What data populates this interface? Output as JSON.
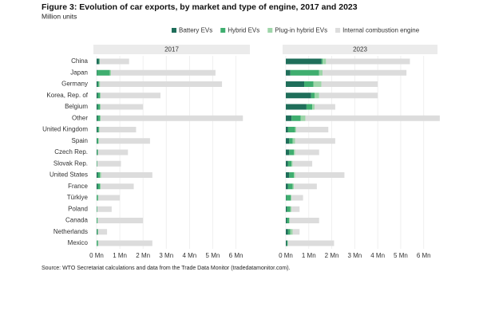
{
  "title": "Figure 3: Evolution of car exports, by market and type of engine, 2017 and 2023",
  "subtitle": "Million units",
  "source": "Source: WTO Secretariat calculations and data from the Trade Data Monitor (tradedatamonitor.com).",
  "chart_data": {
    "type": "bar",
    "orientation": "horizontal",
    "stacked": true,
    "grid": true,
    "categories": [
      "China",
      "Japan",
      "Germany",
      "Korea, Rep. of",
      "Belgium",
      "Other",
      "United Kingdom",
      "Spain",
      "Czech Rep.",
      "Slovak Rep.",
      "United States",
      "France",
      "Türkiye",
      "Poland",
      "Canada",
      "Netherlands",
      "Mexico"
    ],
    "series": [
      {
        "name": "Battery EVs",
        "color": "#1f6e5a"
      },
      {
        "name": "Hybrid EVs",
        "color": "#3fae6f"
      },
      {
        "name": "Plug-in hybrid EVs",
        "color": "#9ed5a9"
      },
      {
        "name": "Internal combustion engine",
        "color": "#dcdcdc"
      }
    ],
    "xlim": [
      0,
      6.6
    ],
    "xticks": [
      {
        "value": 0,
        "label": "0 Mn"
      },
      {
        "value": 1,
        "label": "1 Mn"
      },
      {
        "value": 2,
        "label": "2 Mn"
      },
      {
        "value": 3,
        "label": "3 Mn"
      },
      {
        "value": 4,
        "label": "4 Mn"
      },
      {
        "value": 5,
        "label": "5 Mn"
      },
      {
        "value": 6,
        "label": "6 Mn"
      }
    ],
    "panels": [
      {
        "title": "2017",
        "series": [
          {
            "values": [
              0.1,
              0.02,
              0.05,
              0.05,
              0.05,
              0.05,
              0.05,
              0.02,
              0.02,
              0.01,
              0.05,
              0.05,
              0.01,
              0.01,
              0.01,
              0.02,
              0.01
            ]
          },
          {
            "values": [
              0.02,
              0.55,
              0.05,
              0.1,
              0.1,
              0.1,
              0.05,
              0.05,
              0.03,
              0.02,
              0.1,
              0.1,
              0.05,
              0.02,
              0.03,
              0.03,
              0.05
            ]
          },
          {
            "values": [
              0.02,
              0.05,
              0.05,
              0.02,
              0.02,
              0.03,
              0.03,
              0.03,
              0.02,
              0.01,
              0.05,
              0.03,
              0.02,
              0.01,
              0.02,
              0.02,
              0.02
            ]
          },
          {
            "values": [
              1.26,
              4.5,
              5.25,
              2.58,
              1.83,
              6.12,
              1.57,
              2.2,
              1.28,
              1.01,
              2.2,
              1.42,
              0.92,
              0.61,
              1.94,
              0.38,
              2.32
            ]
          }
        ]
      },
      {
        "title": "2023",
        "series": [
          {
            "values": [
              1.55,
              0.2,
              0.8,
              1.1,
              0.9,
              0.25,
              0.1,
              0.15,
              0.15,
              0.1,
              0.15,
              0.1,
              0.02,
              0.05,
              0.05,
              0.1,
              0.05
            ]
          },
          {
            "values": [
              0.05,
              1.25,
              0.4,
              0.15,
              0.25,
              0.4,
              0.3,
              0.15,
              0.2,
              0.15,
              0.2,
              0.2,
              0.2,
              0.15,
              0.1,
              0.1,
              0.03
            ]
          },
          {
            "values": [
              0.15,
              0.15,
              0.35,
              0.2,
              0.1,
              0.2,
              0.05,
              0.1,
              0.05,
              0.05,
              0.05,
              0.05,
              0.03,
              0.05,
              0.02,
              0.1,
              0.02
            ]
          },
          {
            "values": [
              3.65,
              3.65,
              2.45,
              2.55,
              0.9,
              5.85,
              1.4,
              1.75,
              1.05,
              0.85,
              2.15,
              1.0,
              0.5,
              0.35,
              1.28,
              0.3,
              2.0
            ]
          }
        ]
      }
    ]
  }
}
